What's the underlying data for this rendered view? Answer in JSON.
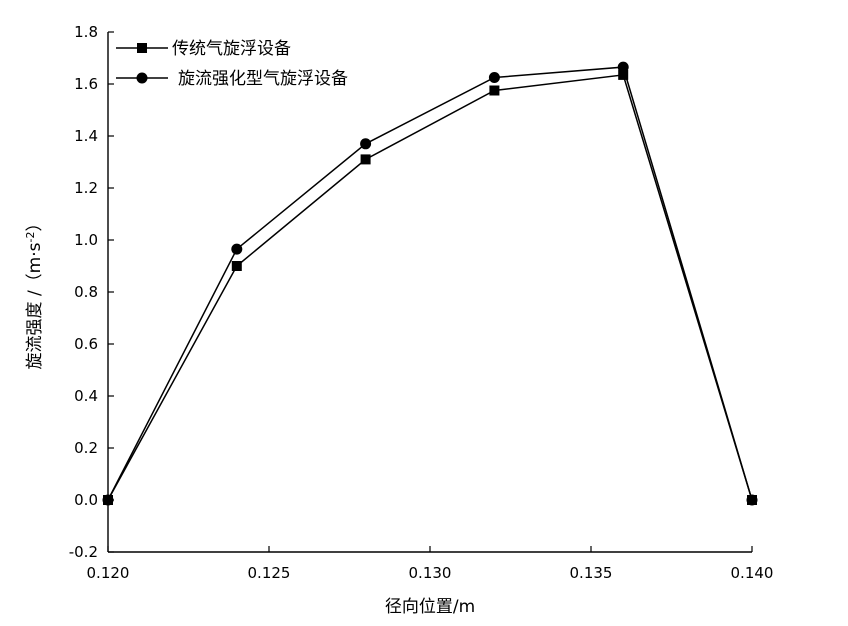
{
  "chart_data": {
    "type": "line",
    "title": "",
    "xlabel": "径向位置/m",
    "ylabel": "旋流强度 /（m·s",
    "ylabel_sup": "-2",
    "ylabel_end": "）",
    "xlim": [
      0.12,
      0.14
    ],
    "ylim": [
      -0.2,
      1.8
    ],
    "xticks": [
      0.12,
      0.125,
      0.13,
      0.135,
      0.14
    ],
    "xtick_labels": [
      "0.120",
      "0.125",
      "0.130",
      "0.135",
      "0.140"
    ],
    "yticks": [
      -0.2,
      0.0,
      0.2,
      0.4,
      0.6,
      0.8,
      1.0,
      1.2,
      1.4,
      1.6,
      1.8
    ],
    "ytick_labels": [
      "-0.2",
      "0.0",
      "0.2",
      "0.4",
      "0.6",
      "0.8",
      "1.0",
      "1.2",
      "1.4",
      "1.6",
      "1.8"
    ],
    "grid": false,
    "legend_position": "top-left",
    "series": [
      {
        "name": "传统气旋浮设备",
        "marker": "square",
        "x": [
          0.12,
          0.124,
          0.128,
          0.132,
          0.136,
          0.14
        ],
        "y": [
          0.0,
          0.9,
          1.31,
          1.575,
          1.635,
          0.0
        ]
      },
      {
        "name": "旋流强化型气旋浮设备",
        "marker": "circle",
        "x": [
          0.12,
          0.124,
          0.128,
          0.132,
          0.136,
          0.14
        ],
        "y": [
          0.0,
          0.965,
          1.37,
          1.625,
          1.665,
          0.0
        ]
      }
    ]
  }
}
